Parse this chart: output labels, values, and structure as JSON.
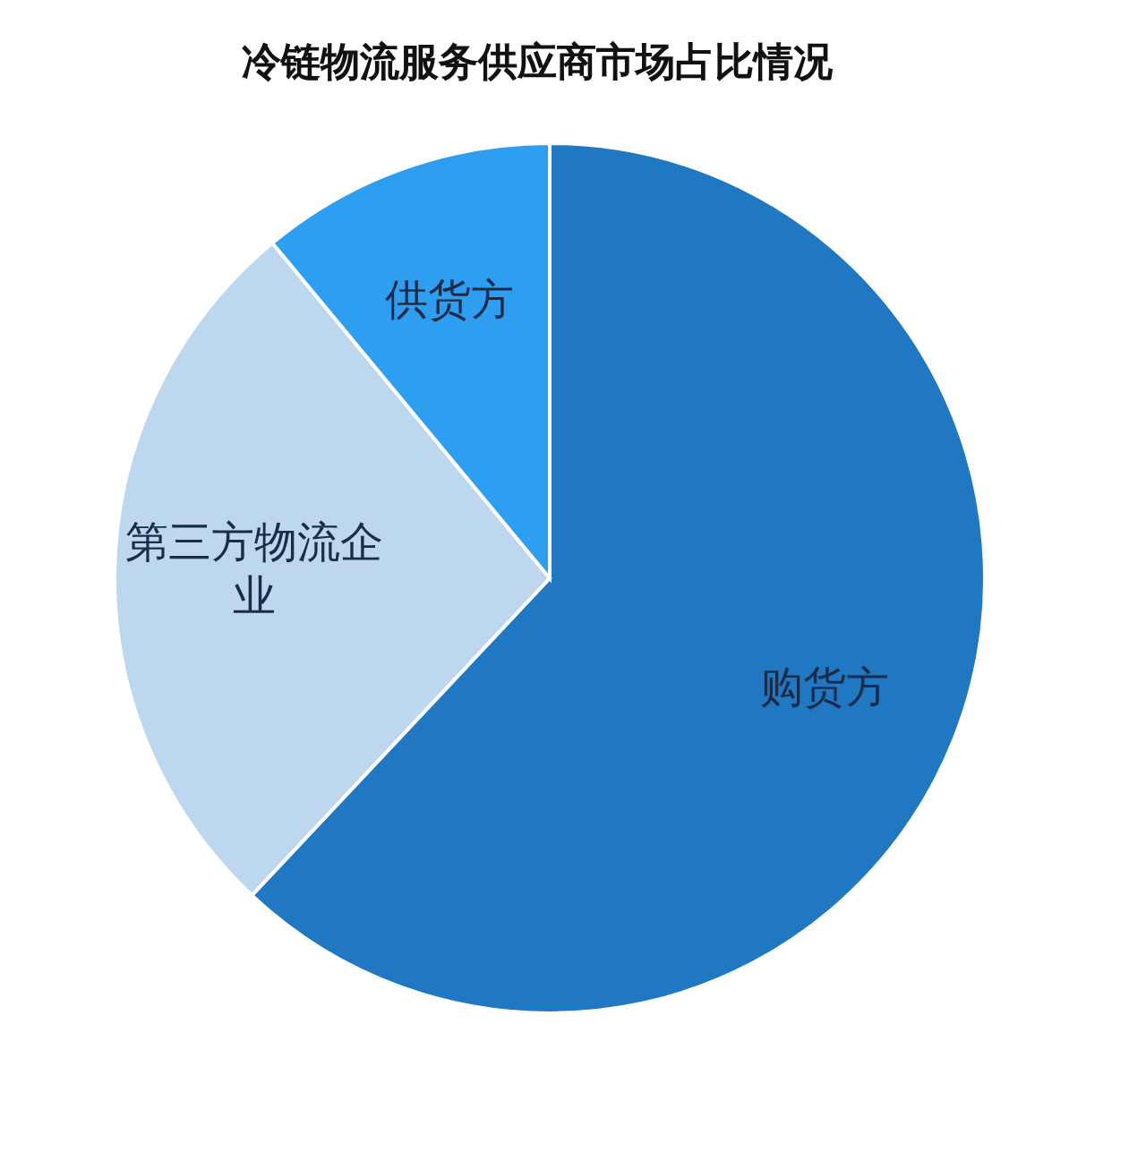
{
  "chart_data": {
    "type": "pie",
    "title": "冷链物流服务供应商市场占比情况",
    "categories": [
      "购货方",
      "第三方物流企业",
      "供货方"
    ],
    "values": [
      62,
      27,
      11
    ],
    "colors": [
      "#1f78c1",
      "#bdd7ee",
      "#2e9ff0"
    ]
  }
}
